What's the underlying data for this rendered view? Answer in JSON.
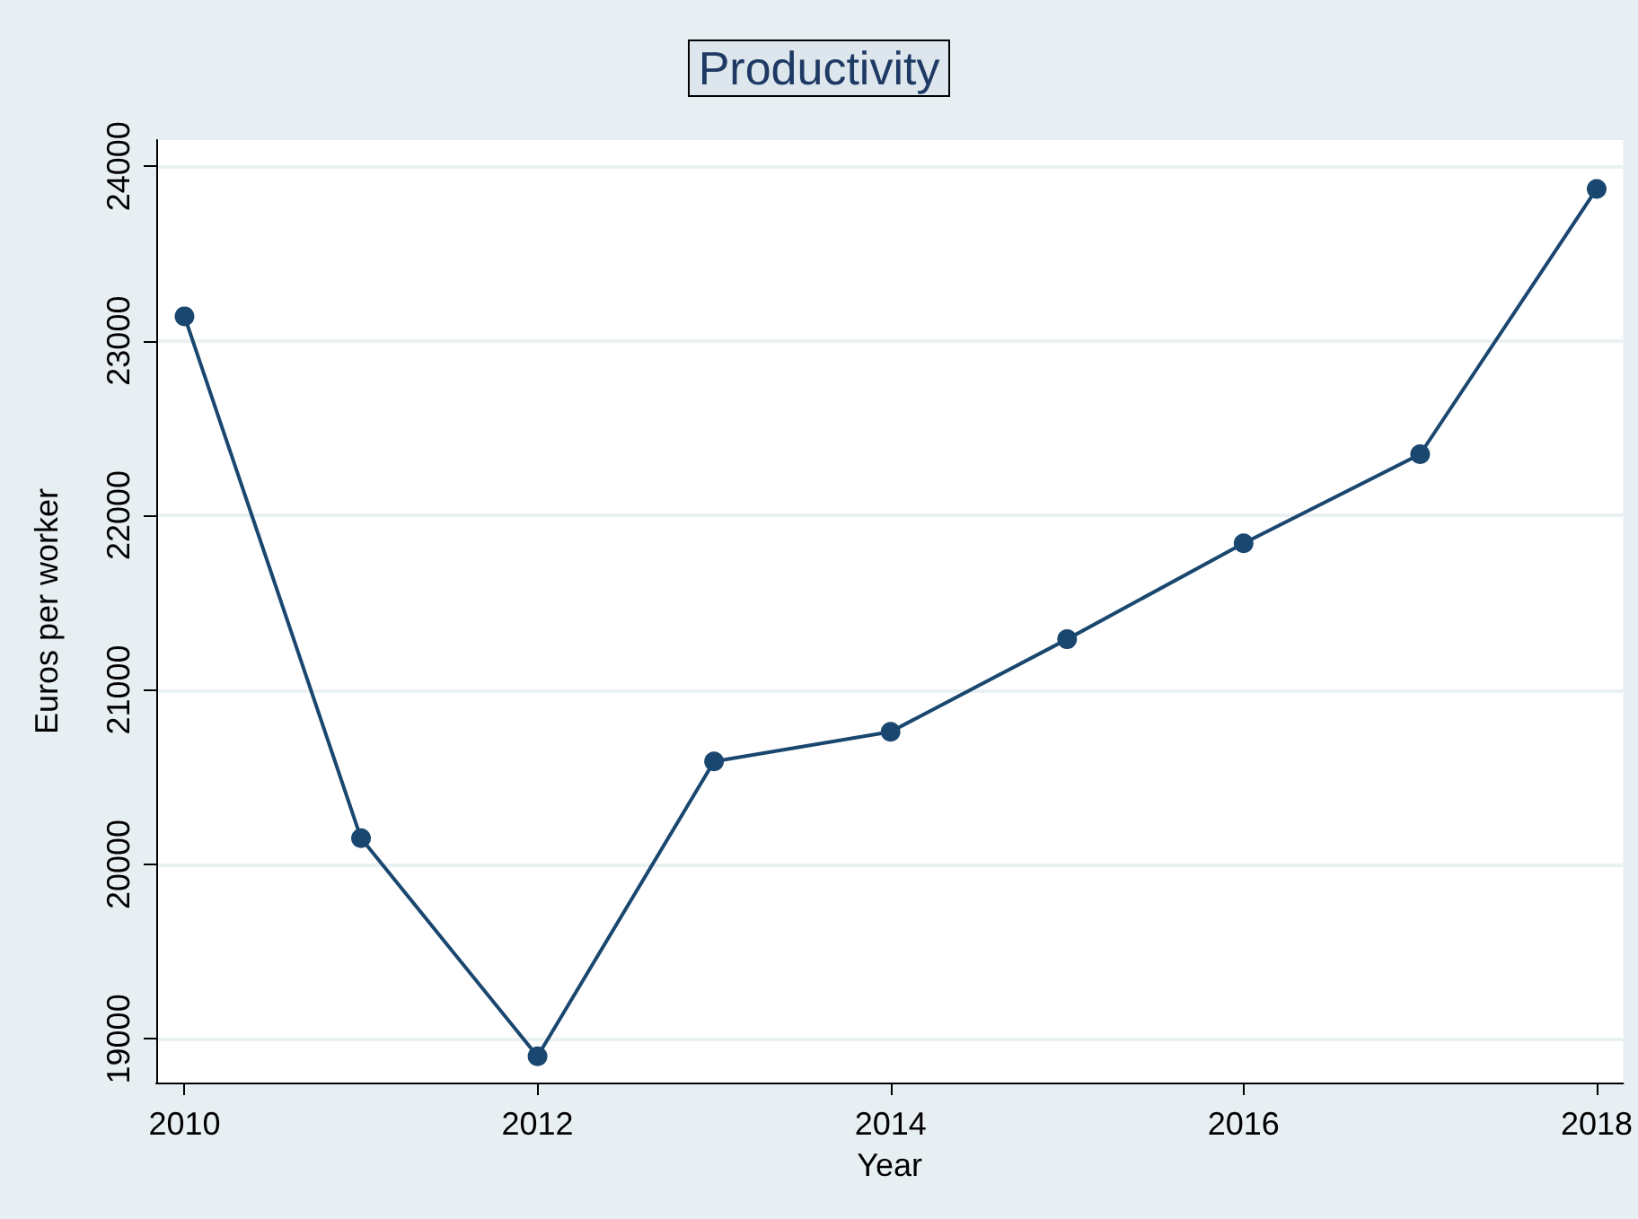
{
  "chart_data": {
    "type": "line",
    "title": "Productivity",
    "xlabel": "Year",
    "ylabel": "Euros per worker",
    "x": [
      2010,
      2011,
      2012,
      2013,
      2014,
      2015,
      2016,
      2017,
      2018
    ],
    "series": [
      {
        "color": "#1a476f",
        "values": [
          23140,
          20150,
          18900,
          20590,
          20760,
          21290,
          21840,
          22350,
          23870
        ]
      }
    ],
    "xlim": [
      2009.84,
      2018.15
    ],
    "xticks": [
      2010,
      2012,
      2014,
      2016,
      2018
    ],
    "ylim": [
      18750,
      24150
    ],
    "yticks": [
      19000,
      20000,
      21000,
      22000,
      23000,
      24000
    ],
    "grid": "y",
    "marker": "circle",
    "line_style": "solid"
  }
}
